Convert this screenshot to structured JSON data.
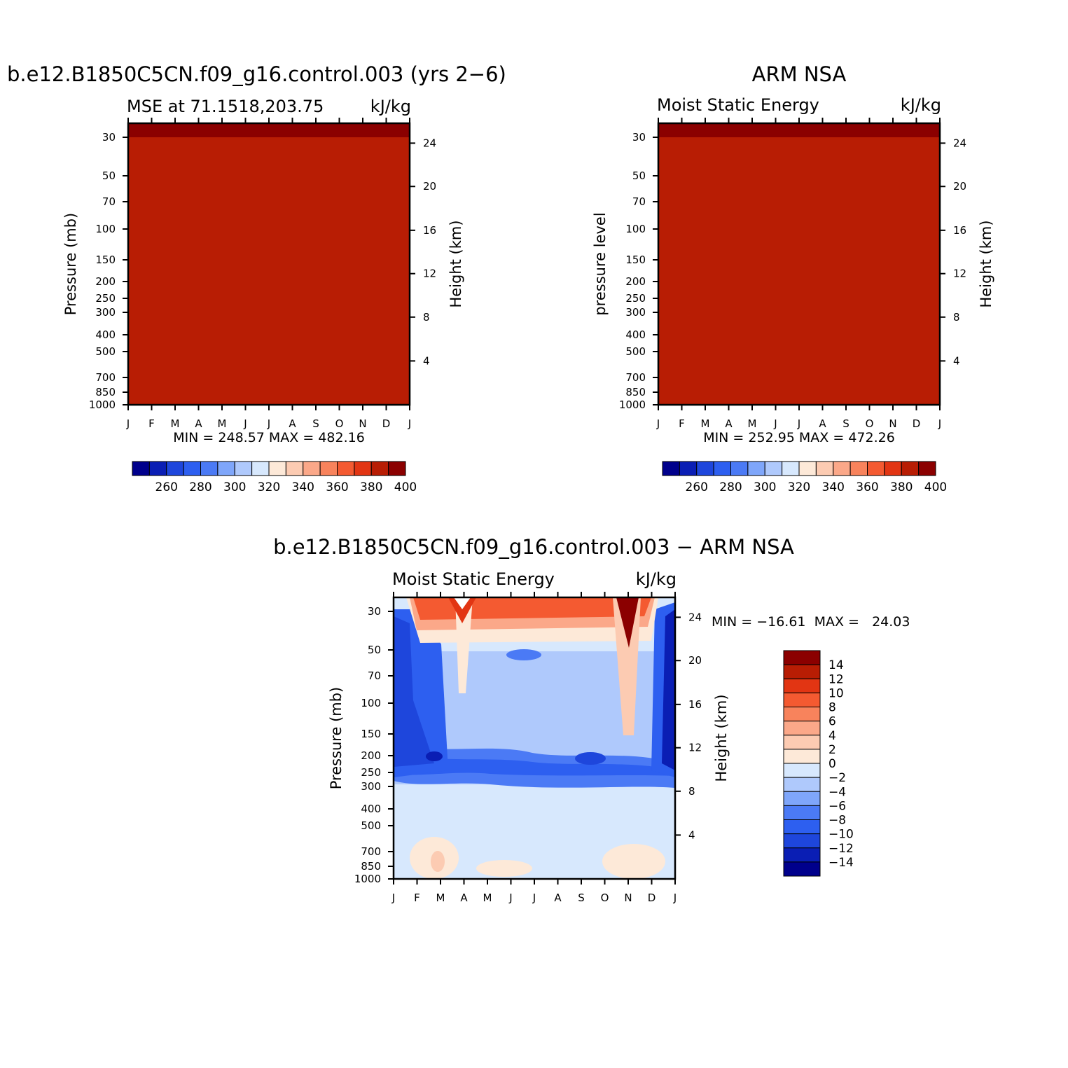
{
  "chart_data": [
    {
      "type": "contour",
      "title": "b.e12.B1850C5CN.f09_g16.control.003 (yrs 2−6)",
      "subtitle_left": "MSE at 71.1518,203.75",
      "subtitle_right": "kJ/kg",
      "ylabel": "Pressure (mb)",
      "y2label": "Height (km)",
      "stats": "MIN = 248.57  MAX = 482.16",
      "boundary_pressures": [
        1000,
        850,
        700,
        500,
        300,
        200,
        150,
        100,
        70,
        50
      ],
      "colorbar": {
        "levels": [
          250,
          260,
          270,
          280,
          290,
          300,
          310,
          320,
          330,
          340,
          350,
          360,
          370,
          380,
          390,
          400
        ],
        "labels": [
          "260",
          "280",
          "300",
          "320",
          "340",
          "360",
          "380",
          "400"
        ]
      }
    },
    {
      "type": "contour",
      "title": "ARM NSA",
      "subtitle_left": "Moist Static Energy",
      "subtitle_right": "kJ/kg",
      "ylabel": "pressure level",
      "y2label": "Height (km)",
      "stats": "MIN = 252.95  MAX = 472.26",
      "boundary_pressures": [
        1000,
        850,
        700,
        500,
        300,
        200,
        150,
        100,
        70,
        50
      ],
      "colorbar": {
        "levels": [
          250,
          260,
          270,
          280,
          290,
          300,
          310,
          320,
          330,
          340,
          350,
          360,
          370,
          380,
          390,
          400
        ],
        "labels": [
          "260",
          "280",
          "300",
          "320",
          "340",
          "360",
          "380",
          "400"
        ]
      }
    },
    {
      "type": "contour",
      "title": "b.e12.B1850C5CN.f09_g16.control.003 − ARM NSA",
      "subtitle_left": "Moist Static Energy",
      "subtitle_right": "kJ/kg",
      "ylabel": "Pressure (mb)",
      "y2label": "Height (km)",
      "stats": "MIN = −16.61  MAX =   24.03",
      "colorbar": {
        "levels": [
          -14,
          -12,
          -10,
          -8,
          -6,
          -4,
          -2,
          0,
          2,
          4,
          6,
          8,
          10,
          12,
          14
        ],
        "labels": [
          "14",
          "12",
          "10",
          "8",
          "6",
          "4",
          "2",
          "0",
          "−2",
          "−4",
          "−6",
          "−8",
          "−10",
          "−12",
          "−14"
        ]
      }
    }
  ],
  "axes": {
    "months": [
      "J",
      "F",
      "M",
      "A",
      "M",
      "J",
      "J",
      "A",
      "S",
      "O",
      "N",
      "D",
      "J"
    ],
    "pressure_ticks": [
      "30",
      "50",
      "70",
      "100",
      "150",
      "200",
      "250",
      "300",
      "400",
      "500",
      "700",
      "850",
      "1000"
    ],
    "pressure_values": [
      30,
      50,
      70,
      100,
      150,
      200,
      250,
      300,
      400,
      500,
      700,
      850,
      1000
    ],
    "height_ticks": [
      "24",
      "20",
      "16",
      "12",
      "8",
      "4"
    ],
    "height_values": [
      24,
      20,
      16,
      12,
      8,
      4
    ]
  },
  "colors": {
    "mse_palette": [
      "#00008c",
      "#0a1eb4",
      "#1e46dc",
      "#2d5ff0",
      "#4b7af5",
      "#7fa6fa",
      "#afc9fc",
      "#d7e8fd",
      "#fde9d8",
      "#fccbb2",
      "#fba889",
      "#f8835c",
      "#f45a31",
      "#e23513",
      "#b81d04",
      "#8b0000"
    ],
    "diff_palette": [
      "#00008c",
      "#0a1eb4",
      "#1e46dc",
      "#2d5ff0",
      "#4b7af5",
      "#7fa6fa",
      "#afc9fc",
      "#d7e8fd",
      "#fde9d8",
      "#fccbb2",
      "#fba889",
      "#f8835c",
      "#f45a31",
      "#e23513",
      "#b81d04",
      "#8b0000"
    ],
    "missing": "#ffffff"
  }
}
